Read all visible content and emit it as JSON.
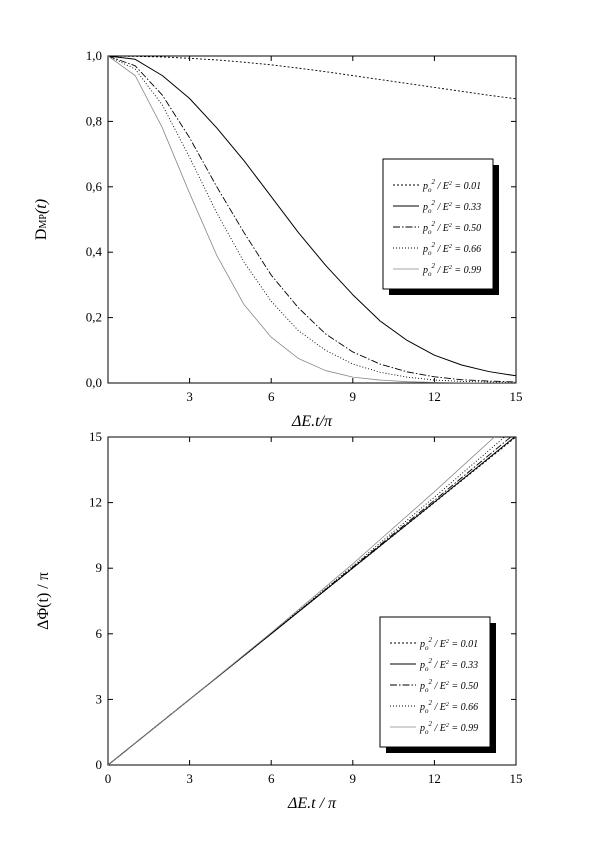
{
  "chart_data": [
    {
      "type": "line",
      "xlabel": "ΔE.t/π",
      "ylabel": "D",
      "ylabel_sub": "MP",
      "ylabel_tail": "(t)",
      "xlim": [
        0,
        15
      ],
      "ylim": [
        0,
        1
      ],
      "xticks": [
        3,
        6,
        9,
        12,
        15
      ],
      "xtick_labels": [
        "3",
        "6",
        "9",
        "12",
        "15"
      ],
      "yticks": [
        0,
        0.2,
        0.4,
        0.6,
        0.8,
        1.0
      ],
      "ytick_labels": [
        "0,0",
        "0,2",
        "0,4",
        "0,6",
        "0,8",
        "1,0"
      ],
      "grid": false,
      "legend_position": "right",
      "legend_shadow": true,
      "series": [
        {
          "name": "p_o^2 / E^2 = 0.01",
          "label": {
            "pre": "p",
            "sub": "o",
            "sup": "2",
            "mid": " / E",
            "sup2": "2",
            "post": " = 0.01"
          },
          "dash": "2,2",
          "color": "#000000",
          "width": 0.9,
          "x": [
            0,
            1,
            2,
            3,
            4,
            5,
            6,
            7,
            8,
            9,
            10,
            11,
            12,
            13,
            14,
            15
          ],
          "y": [
            1.0,
            0.999,
            0.997,
            0.993,
            0.988,
            0.981,
            0.973,
            0.963,
            0.952,
            0.94,
            0.928,
            0.916,
            0.904,
            0.892,
            0.88,
            0.869
          ]
        },
        {
          "name": "p_o^2 / E^2 = 0.33",
          "label": {
            "pre": "p",
            "sub": "o",
            "sup": "2",
            "mid": " / E",
            "sup2": "2",
            "post": " = 0.33"
          },
          "dash": "",
          "color": "#000000",
          "width": 1.0,
          "x": [
            0,
            1,
            2,
            3,
            4,
            5,
            6,
            7,
            8,
            9,
            10,
            11,
            12,
            13,
            14,
            15
          ],
          "y": [
            1.0,
            0.99,
            0.94,
            0.87,
            0.78,
            0.68,
            0.57,
            0.46,
            0.36,
            0.27,
            0.19,
            0.13,
            0.085,
            0.055,
            0.035,
            0.022
          ]
        },
        {
          "name": "p_o^2 / E^2 = 0.50",
          "label": {
            "pre": "p",
            "sub": "o",
            "sup": "2",
            "mid": " / E",
            "sup2": "2",
            "post": " = 0.50"
          },
          "dash": "7,2,1.5,2",
          "color": "#000000",
          "width": 0.9,
          "x": [
            0,
            1,
            2,
            3,
            4,
            5,
            6,
            7,
            8,
            9,
            10,
            11,
            12,
            13,
            14,
            15
          ],
          "y": [
            1.0,
            0.97,
            0.88,
            0.75,
            0.6,
            0.46,
            0.33,
            0.23,
            0.15,
            0.095,
            0.058,
            0.034,
            0.019,
            0.01,
            0.006,
            0.003
          ]
        },
        {
          "name": "p_o^2 / E^2 = 0.66",
          "label": {
            "pre": "p",
            "sub": "o",
            "sup": "2",
            "mid": " / E",
            "sup2": "2",
            "post": " = 0.66"
          },
          "dash": "1,2",
          "color": "#000000",
          "width": 0.9,
          "x": [
            0,
            1,
            2,
            3,
            4,
            5,
            6,
            7,
            8,
            9,
            10,
            11,
            12,
            13,
            14,
            15
          ],
          "y": [
            1.0,
            0.96,
            0.85,
            0.69,
            0.52,
            0.37,
            0.25,
            0.16,
            0.1,
            0.058,
            0.033,
            0.018,
            0.009,
            0.005,
            0.003,
            0.002
          ]
        },
        {
          "name": "p_o^2 / E^2 = 0.99",
          "label": {
            "pre": "p",
            "sub": "o",
            "sup": "2",
            "mid": " / E",
            "sup2": "2",
            "post": " = 0.99"
          },
          "dash": "",
          "color": "#888888",
          "width": 0.8,
          "x": [
            0,
            1,
            2,
            3,
            4,
            5,
            6,
            7,
            8,
            9,
            10,
            11,
            12,
            13,
            14,
            15
          ],
          "y": [
            1.0,
            0.94,
            0.78,
            0.58,
            0.39,
            0.24,
            0.14,
            0.075,
            0.038,
            0.018,
            0.009,
            0.004,
            0.002,
            0.001,
            0.0,
            0.0
          ]
        }
      ]
    },
    {
      "type": "line",
      "xlabel": "ΔE.t / π",
      "ylabel": "ΔΦ(t) / π",
      "xlim": [
        0,
        15
      ],
      "ylim": [
        0,
        15
      ],
      "xticks": [
        0,
        3,
        6,
        9,
        12,
        15
      ],
      "xtick_labels": [
        "0",
        "3",
        "6",
        "9",
        "12",
        "15"
      ],
      "yticks": [
        0,
        3,
        6,
        9,
        12,
        15
      ],
      "ytick_labels": [
        "0",
        "3",
        "6",
        "9",
        "12",
        "15"
      ],
      "grid": false,
      "legend_position": "right",
      "legend_shadow": true,
      "series": [
        {
          "name": "p_o^2 / E^2 = 0.01",
          "label": {
            "pre": "p",
            "sub": "o",
            "sup": "2",
            "mid": " / E",
            "sup2": "2",
            "post": " = 0.01"
          },
          "dash": "2,2",
          "color": "#000000",
          "width": 0.9,
          "x": [
            0,
            3,
            6,
            9,
            12,
            15
          ],
          "y": [
            0,
            3.0,
            6.0,
            9.0,
            12.0,
            15.0
          ]
        },
        {
          "name": "p_o^2 / E^2 = 0.33",
          "label": {
            "pre": "p",
            "sub": "o",
            "sup": "2",
            "mid": " / E",
            "sup2": "2",
            "post": " = 0.33"
          },
          "dash": "",
          "color": "#000000",
          "width": 1.0,
          "x": [
            0,
            3,
            6,
            9,
            12,
            15
          ],
          "y": [
            0,
            3.0,
            6.0,
            9.01,
            12.02,
            15.05
          ]
        },
        {
          "name": "p_o^2 / E^2 = 0.50",
          "label": {
            "pre": "p",
            "sub": "o",
            "sup": "2",
            "mid": " / E",
            "sup2": "2",
            "post": " = 0.50"
          },
          "dash": "7,2,1.5,2",
          "color": "#000000",
          "width": 0.9,
          "x": [
            0,
            3,
            6,
            9,
            12,
            15
          ],
          "y": [
            0,
            3.0,
            6.0,
            9.05,
            12.1,
            15.2
          ]
        },
        {
          "name": "p_o^2 / E^2 = 0.66",
          "label": {
            "pre": "p",
            "sub": "o",
            "sup": "2",
            "mid": " / E",
            "sup2": "2",
            "post": " = 0.66"
          },
          "dash": "1,2",
          "color": "#000000",
          "width": 0.9,
          "x": [
            0,
            3,
            6,
            9,
            12,
            15
          ],
          "y": [
            0,
            3.0,
            6.02,
            9.1,
            12.25,
            15.45
          ]
        },
        {
          "name": "p_o^2 / E^2 = 0.99",
          "label": {
            "pre": "p",
            "sub": "o",
            "sup": "2",
            "mid": " / E",
            "sup2": "2",
            "post": " = 0.99"
          },
          "dash": "",
          "color": "#888888",
          "width": 0.8,
          "x": [
            0,
            3,
            6,
            9,
            12,
            15
          ],
          "y": [
            0,
            3.0,
            6.05,
            9.2,
            12.5,
            15.9
          ]
        }
      ]
    }
  ]
}
